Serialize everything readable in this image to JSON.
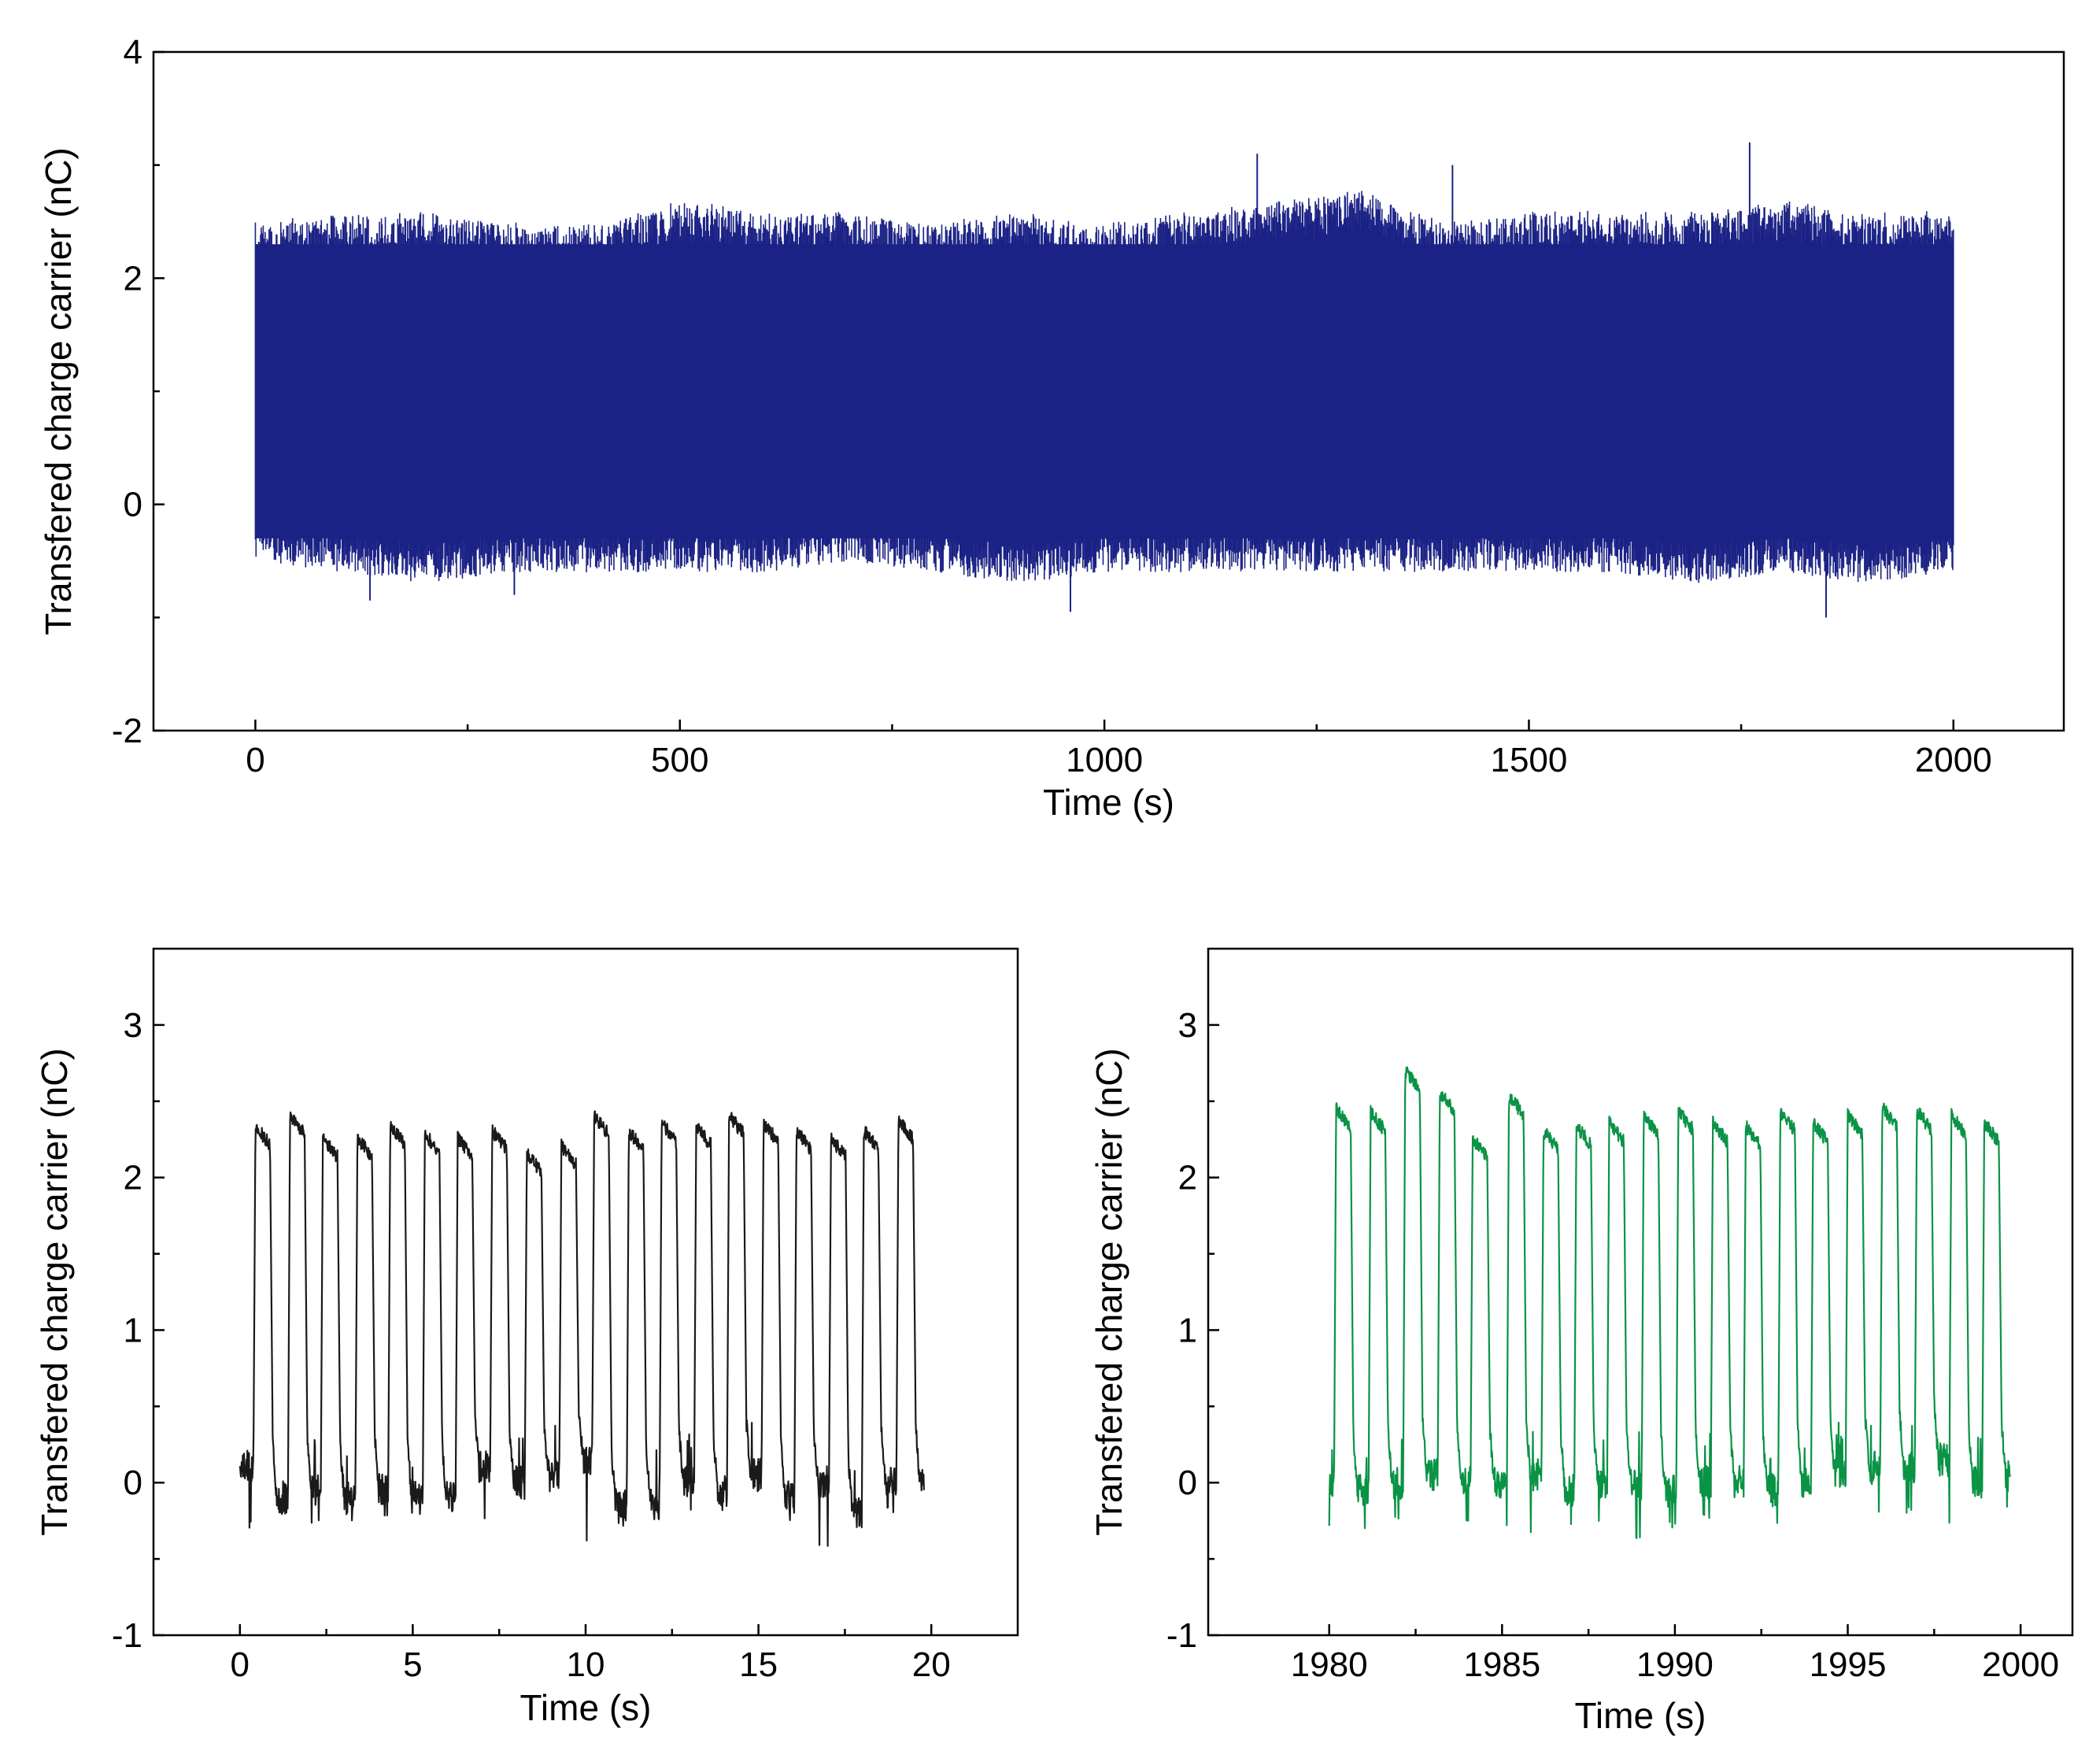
{
  "chart_data": [
    {
      "id": "top",
      "type": "line",
      "title": "",
      "xlabel": "Time (s)",
      "ylabel": "Transfered charge carrier (nC)",
      "xlim": [
        -120,
        2130
      ],
      "ylim": [
        -2,
        4
      ],
      "xticks": [
        0,
        500,
        1000,
        1500,
        2000
      ],
      "xtick_labels": [
        "0",
        "500",
        "1000",
        "1500",
        "2000"
      ],
      "yticks": [
        -2,
        0,
        2,
        4
      ],
      "ytick_labels": [
        "-2",
        "0",
        "2",
        "4"
      ],
      "ytick_minor": [
        -1,
        1,
        3
      ],
      "color": "#1b2285",
      "grid": false,
      "legend": "none",
      "series": [
        {
          "x_range": [
            0,
            2000
          ],
          "period_s": 1.0,
          "low_nC": 0.0,
          "high_nC": 2.3,
          "envelope_max": [
            2.5,
            2.6,
            2.6,
            2.5,
            2.5,
            2.7,
            2.6,
            2.6,
            2.5,
            2.6,
            2.5,
            2.6,
            2.7,
            2.8,
            2.5,
            2.6,
            2.6,
            2.6,
            2.7,
            2.6,
            2.6
          ],
          "envelope_min": [
            -0.5,
            -0.6,
            -0.7,
            -0.6,
            -0.6,
            -0.6,
            -0.6,
            -0.5,
            -0.6,
            -0.7,
            -0.6,
            -0.6,
            -0.6,
            -0.6,
            -0.6,
            -0.6,
            -0.6,
            -0.7,
            -0.6,
            -0.7,
            -0.6
          ],
          "spikes": [
            {
              "x": 1180,
              "y": 3.1
            },
            {
              "x": 1760,
              "y": 3.2
            },
            {
              "x": 1410,
              "y": 3.0
            },
            {
              "x": 960,
              "y": -0.95
            },
            {
              "x": 1850,
              "y": -1.0
            },
            {
              "x": 135,
              "y": -0.85
            },
            {
              "x": 305,
              "y": -0.8
            }
          ]
        }
      ]
    },
    {
      "id": "bottom-left",
      "type": "line",
      "title": "",
      "xlabel": "Time (s)",
      "ylabel": "Transfered charge carrier (nC)",
      "xlim": [
        -2.5,
        22.5
      ],
      "ylim": [
        -1,
        3.5
      ],
      "xticks": [
        0,
        5,
        10,
        15,
        20
      ],
      "xtick_labels": [
        "0",
        "5",
        "10",
        "15",
        "20"
      ],
      "yticks": [
        -1,
        0,
        1,
        2,
        3
      ],
      "ytick_labels": [
        "-1",
        "0",
        "1",
        "2",
        "3"
      ],
      "ytick_minor": [
        -0.5,
        0.5,
        1.5,
        2.5
      ],
      "color": "#1a1a1a",
      "grid": false,
      "legend": "none",
      "series": [
        {
          "x_range": [
            0,
            19.8
          ],
          "pulse_starts": [
            0.45,
            1.45,
            2.4,
            3.4,
            4.35,
            5.35,
            6.3,
            7.3,
            8.3,
            9.3,
            10.25,
            11.25,
            12.2,
            13.2,
            14.15,
            15.15,
            16.1,
            17.1,
            18.05,
            19.05
          ],
          "pulse_width": 0.42,
          "pulse_peaks": [
            2.38,
            2.45,
            2.3,
            2.3,
            2.38,
            2.33,
            2.3,
            2.35,
            2.2,
            2.25,
            2.45,
            2.35,
            2.4,
            2.38,
            2.45,
            2.4,
            2.35,
            2.3,
            2.35,
            2.42
          ],
          "baseline": [
            0.1,
            -0.1,
            -0.05,
            -0.1,
            -0.05,
            -0.1,
            -0.1,
            0.1,
            0.0,
            0.05,
            0.15,
            -0.15,
            -0.1,
            0.0,
            -0.05,
            0.05,
            -0.1,
            0.0,
            -0.2,
            0.0,
            0.0
          ],
          "min_values": [
            -0.3,
            -0.3,
            -0.28,
            -0.27,
            -0.25,
            -0.28,
            -0.2,
            -0.25,
            -0.2,
            -0.22,
            -0.38,
            -0.3,
            -0.25,
            -0.2,
            -0.22,
            -0.25,
            -0.25,
            -0.45,
            -0.3,
            -0.2
          ]
        }
      ]
    },
    {
      "id": "bottom-right",
      "type": "line",
      "title": "",
      "xlabel": "Time (s)",
      "ylabel": "Transfered charge carrier (nC)",
      "xlim": [
        1976.5,
        2001.5
      ],
      "ylim": [
        -1,
        3.5
      ],
      "xticks": [
        1980,
        1985,
        1990,
        1995,
        2000
      ],
      "xtick_labels": [
        "1980",
        "1985",
        "1990",
        "1995",
        "2000"
      ],
      "yticks": [
        -1,
        0,
        1,
        2,
        3
      ],
      "ytick_labels": [
        "-1",
        "0",
        "1",
        "2",
        "3"
      ],
      "ytick_minor": [
        -0.5,
        0.5,
        1.5,
        2.5
      ],
      "color": "#0a9345",
      "grid": false,
      "legend": "none",
      "series": [
        {
          "x_range": [
            1980,
            1999.7
          ],
          "pulse_starts": [
            1980.2,
            1981.2,
            1982.2,
            1983.2,
            1984.15,
            1985.2,
            1986.2,
            1987.15,
            1988.1,
            1989.1,
            1990.1,
            1991.1,
            1992.05,
            1993.05,
            1994.0,
            1995.0,
            1996.0,
            1997.0,
            1998.0,
            1998.95
          ],
          "pulse_width": 0.42,
          "pulse_peaks": [
            2.5,
            2.47,
            2.75,
            2.6,
            2.3,
            2.58,
            2.35,
            2.38,
            2.4,
            2.45,
            2.48,
            2.4,
            2.38,
            2.47,
            2.4,
            2.45,
            2.5,
            2.48,
            2.45,
            2.4
          ],
          "baseline": [
            -0.05,
            -0.05,
            0.0,
            0.05,
            0.0,
            0.0,
            0.05,
            -0.05,
            0.0,
            0.0,
            -0.05,
            0.0,
            0.0,
            -0.05,
            0.0,
            0.05,
            0.1,
            0.1,
            0.15,
            0.0,
            0.05
          ],
          "min_values": [
            -0.3,
            -0.3,
            -0.25,
            -0.2,
            -0.25,
            -0.32,
            -0.35,
            -0.3,
            -0.28,
            -0.38,
            -0.3,
            -0.25,
            -0.35,
            -0.28,
            -0.25,
            -0.25,
            -0.22,
            -0.2,
            -0.28,
            -0.2
          ]
        }
      ]
    }
  ]
}
